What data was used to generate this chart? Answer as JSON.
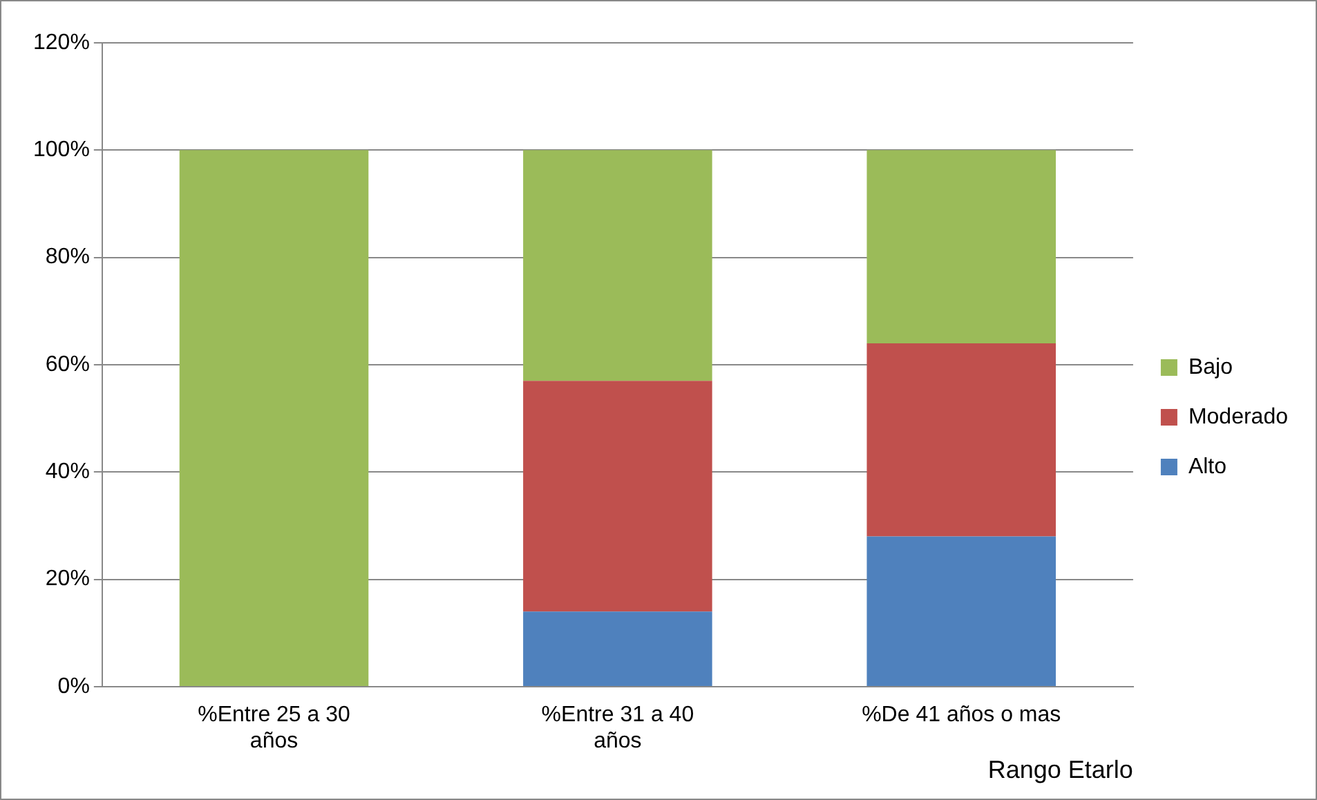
{
  "chart_data": {
    "type": "bar",
    "stacked": true,
    "xlabel": "Rango Etarlo",
    "categories": [
      "%Entre 25 a 30 años",
      "%Entre 31 a 40 años",
      "%De 41 años o mas"
    ],
    "series": [
      {
        "name": "Alto",
        "color": "#4f81bd",
        "values": [
          0,
          14,
          28
        ]
      },
      {
        "name": "Moderado",
        "color": "#c0504d",
        "values": [
          0,
          43,
          36
        ]
      },
      {
        "name": "Bajo",
        "color": "#9bbb59",
        "values": [
          100,
          43,
          36
        ]
      }
    ],
    "ylim": [
      0,
      120
    ],
    "yticks": [
      {
        "value": 0,
        "label": "0%"
      },
      {
        "value": 20,
        "label": "20%"
      },
      {
        "value": 40,
        "label": "40%"
      },
      {
        "value": 60,
        "label": "60%"
      },
      {
        "value": 80,
        "label": "80%"
      },
      {
        "value": 100,
        "label": "100%"
      },
      {
        "value": 120,
        "label": "120%"
      }
    ],
    "grid": "y",
    "legend": "right"
  }
}
